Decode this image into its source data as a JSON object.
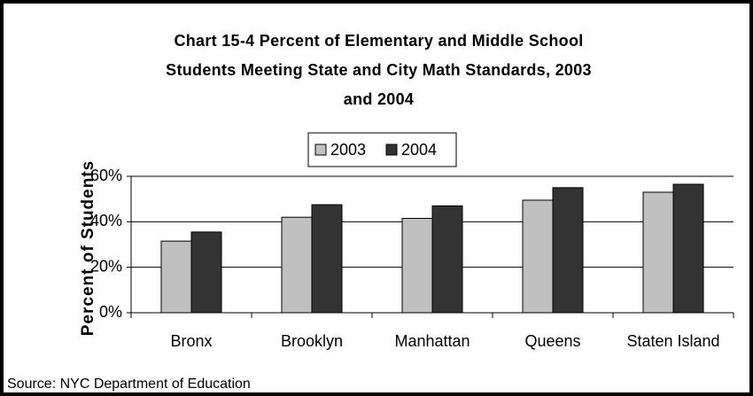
{
  "chart_data": {
    "type": "bar",
    "title": "Chart 15-4 Percent of Elementary and Middle School Students Meeting State and City Math Standards, 2003 and 2004",
    "y_label": "Percent of Students",
    "source": "Source: NYC Department of Education",
    "categories": [
      "Bronx",
      "Brooklyn",
      "Manhattan",
      "Queens",
      "Staten Island"
    ],
    "series": [
      {
        "name": "2003",
        "color": "#c0c0c0",
        "values": [
          31.5,
          42,
          41.5,
          49.5,
          53
        ]
      },
      {
        "name": "2004",
        "color": "#333333",
        "values": [
          35.5,
          47.5,
          47,
          55,
          56.5
        ]
      }
    ],
    "ylim": [
      0,
      60
    ],
    "yticks": [
      {
        "value": 0,
        "label": "0%"
      },
      {
        "value": 20,
        "label": "20%"
      },
      {
        "value": 40,
        "label": "40%"
      },
      {
        "value": 60,
        "label": "60%"
      }
    ],
    "grid": true,
    "legend": "top"
  }
}
